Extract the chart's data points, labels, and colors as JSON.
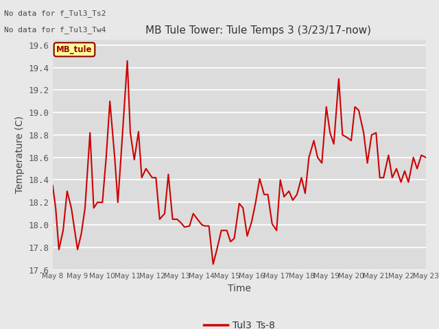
{
  "title": "MB Tule Tower: Tule Temps 3 (3/23/17-now)",
  "xlabel": "Time",
  "ylabel": "Temperature (C)",
  "legend_label": "Tul3_Ts-8",
  "no_data_lines": [
    "No data for f_Tul3_Ts2",
    "No data for f_Tul3_Tw4"
  ],
  "mb_tule_label": "MB_tule",
  "ylim": [
    17.6,
    19.65
  ],
  "line_color": "#cc0000",
  "bg_color": "#e8e8e8",
  "plot_bg_color": "#dcdcdc",
  "grid_color": "#ffffff",
  "xtick_labels": [
    "May 8",
    "May 9",
    "May 10",
    "May 11",
    "May 12",
    "May 13",
    "May 14",
    "May 15",
    "May 16",
    "May 17",
    "May 18",
    "May 19",
    "May 20",
    "May 21",
    "May 22",
    "May 23"
  ],
  "x_data": [
    0.0,
    0.12,
    0.25,
    0.42,
    0.58,
    0.75,
    1.0,
    1.15,
    1.3,
    1.5,
    1.65,
    1.8,
    2.0,
    2.15,
    2.3,
    2.5,
    2.62,
    2.75,
    3.0,
    3.12,
    3.28,
    3.45,
    3.58,
    3.75,
    4.0,
    4.15,
    4.3,
    4.5,
    4.65,
    4.82,
    5.0,
    5.15,
    5.3,
    5.5,
    5.65,
    5.82,
    6.0,
    6.12,
    6.28,
    6.45,
    6.6,
    6.78,
    7.0,
    7.15,
    7.3,
    7.5,
    7.65,
    7.82,
    8.0,
    8.15,
    8.32,
    8.5,
    8.65,
    8.82,
    9.0,
    9.15,
    9.3,
    9.5,
    9.65,
    9.82,
    10.0,
    10.15,
    10.3,
    10.5,
    10.65,
    10.82,
    11.0,
    11.15,
    11.3,
    11.5,
    11.65,
    11.82,
    12.0,
    12.15,
    12.3,
    12.5,
    12.65,
    12.82,
    13.0,
    13.15,
    13.3,
    13.5,
    13.65,
    13.82,
    14.0,
    14.15,
    14.3,
    14.5,
    14.65,
    14.82,
    15.0
  ],
  "y_data": [
    18.35,
    18.15,
    17.78,
    17.95,
    18.3,
    18.15,
    17.78,
    17.92,
    18.15,
    18.82,
    18.15,
    18.2,
    18.2,
    18.6,
    19.1,
    18.58,
    18.2,
    18.62,
    19.46,
    18.82,
    18.58,
    18.83,
    18.42,
    18.5,
    18.42,
    18.42,
    18.05,
    18.1,
    18.45,
    18.05,
    18.05,
    18.02,
    17.98,
    17.99,
    18.1,
    18.05,
    18.0,
    17.99,
    17.99,
    17.65,
    17.78,
    17.95,
    17.95,
    17.85,
    17.88,
    18.19,
    18.15,
    17.9,
    18.03,
    18.19,
    18.41,
    18.27,
    18.27,
    18.01,
    17.95,
    18.4,
    18.25,
    18.3,
    18.22,
    18.27,
    18.42,
    18.28,
    18.6,
    18.75,
    18.6,
    18.55,
    19.05,
    18.82,
    18.72,
    19.3,
    18.8,
    18.78,
    18.75,
    19.05,
    19.02,
    18.82,
    18.55,
    18.8,
    18.82,
    18.42,
    18.42,
    18.62,
    18.42,
    18.5,
    18.38,
    18.48,
    18.38,
    18.6,
    18.5,
    18.62,
    18.6
  ]
}
